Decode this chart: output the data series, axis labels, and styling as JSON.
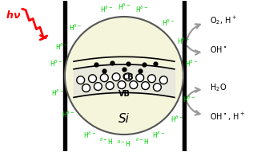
{
  "bg_color": "#ffffff",
  "wall_color": "#000000",
  "circle_fill": "#f5f5dc",
  "circle_edge": "#555555",
  "band_color": "#000000",
  "dot_color": "#000000",
  "hole_color": "#000000",
  "green_color": "#00cc00",
  "red_color": "#ff0000",
  "arrow_color": "#aaaaaa",
  "arrow_edge": "#888888",
  "text_color": "#000000",
  "hv_text": "h",
  "nu_text": "ν",
  "cb_label": "CB",
  "vb_label": "VB",
  "si_label": "Si",
  "right_labels": [
    "O₂, H⁺",
    "OH•",
    "H₂O",
    "OH•, H⁺"
  ],
  "h_labels_top": [
    "Hδ⁻",
    "Hδ⁻",
    "Hδ⁻"
  ],
  "h_labels_left": [
    "Hδ⁻",
    "Hδ⁻",
    "Hδ⁻",
    "Hδ⁻"
  ],
  "h_labels_bottom": [
    "δ⁻H",
    "δ⁻H",
    "δ⁻H"
  ],
  "h_labels_right": [
    "Hδ⁻",
    "Hδ⁻",
    "Hδ⁻"
  ]
}
